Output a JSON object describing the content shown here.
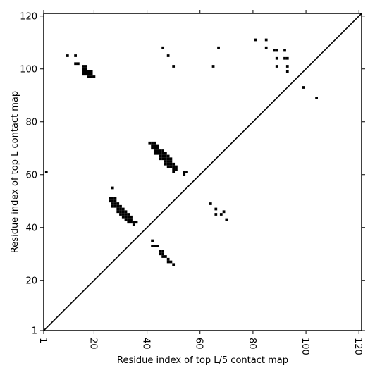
{
  "chart_data": {
    "type": "heatmap",
    "title": "",
    "xlabel": "Residue index of top L/5 contact map",
    "ylabel": "Residue index of top L contact map",
    "xlim": [
      1,
      121
    ],
    "ylim": [
      1,
      121
    ],
    "x_ticks": [
      1,
      20,
      40,
      60,
      80,
      100,
      120
    ],
    "y_ticks": [
      1,
      20,
      40,
      60,
      80,
      100,
      120
    ],
    "x_tick_rotation": -90,
    "grid": false,
    "diagonal_line": true,
    "mark_color": "#000000",
    "background_color": "#ffffff",
    "points": [
      [
        2,
        61
      ],
      [
        10,
        105
      ],
      [
        13,
        105
      ],
      [
        13,
        102
      ],
      [
        14,
        102
      ],
      [
        16,
        101
      ],
      [
        17,
        101
      ],
      [
        16,
        100
      ],
      [
        17,
        100
      ],
      [
        16,
        99
      ],
      [
        17,
        99
      ],
      [
        18,
        99
      ],
      [
        19,
        99
      ],
      [
        16,
        98
      ],
      [
        17,
        98
      ],
      [
        18,
        98
      ],
      [
        19,
        98
      ],
      [
        18,
        97
      ],
      [
        19,
        97
      ],
      [
        20,
        97
      ],
      [
        26,
        51
      ],
      [
        27,
        51
      ],
      [
        28,
        51
      ],
      [
        27,
        55
      ],
      [
        27,
        50
      ],
      [
        28,
        50
      ],
      [
        28,
        49
      ],
      [
        29,
        49
      ],
      [
        26,
        50
      ],
      [
        27,
        49
      ],
      [
        27,
        48
      ],
      [
        28,
        48
      ],
      [
        29,
        48
      ],
      [
        30,
        48
      ],
      [
        29,
        47
      ],
      [
        30,
        47
      ],
      [
        31,
        47
      ],
      [
        29,
        46
      ],
      [
        30,
        46
      ],
      [
        31,
        46
      ],
      [
        32,
        46
      ],
      [
        30,
        45
      ],
      [
        31,
        45
      ],
      [
        32,
        45
      ],
      [
        33,
        45
      ],
      [
        31,
        44
      ],
      [
        32,
        44
      ],
      [
        33,
        44
      ],
      [
        34,
        44
      ],
      [
        32,
        43
      ],
      [
        33,
        43
      ],
      [
        34,
        43
      ],
      [
        33,
        42
      ],
      [
        34,
        42
      ],
      [
        35,
        42
      ],
      [
        36,
        42
      ],
      [
        35,
        41
      ],
      [
        41,
        72
      ],
      [
        42,
        72
      ],
      [
        43,
        72
      ],
      [
        42,
        71
      ],
      [
        43,
        71
      ],
      [
        44,
        71
      ],
      [
        42,
        70
      ],
      [
        43,
        70
      ],
      [
        44,
        70
      ],
      [
        43,
        69
      ],
      [
        44,
        69
      ],
      [
        45,
        69
      ],
      [
        46,
        69
      ],
      [
        43,
        68
      ],
      [
        44,
        68
      ],
      [
        45,
        68
      ],
      [
        46,
        68
      ],
      [
        47,
        68
      ],
      [
        45,
        67
      ],
      [
        46,
        67
      ],
      [
        47,
        67
      ],
      [
        48,
        67
      ],
      [
        45,
        66
      ],
      [
        46,
        66
      ],
      [
        47,
        66
      ],
      [
        48,
        66
      ],
      [
        49,
        66
      ],
      [
        47,
        65
      ],
      [
        48,
        65
      ],
      [
        49,
        65
      ],
      [
        47,
        64
      ],
      [
        48,
        64
      ],
      [
        49,
        64
      ],
      [
        50,
        64
      ],
      [
        48,
        63
      ],
      [
        49,
        63
      ],
      [
        50,
        63
      ],
      [
        51,
        63
      ],
      [
        50,
        62
      ],
      [
        51,
        62
      ],
      [
        50,
        61
      ],
      [
        54,
        61
      ],
      [
        55,
        61
      ],
      [
        54,
        60
      ],
      [
        46,
        108
      ],
      [
        48,
        105
      ],
      [
        50,
        101
      ],
      [
        65,
        101
      ],
      [
        67,
        108
      ],
      [
        81,
        111
      ],
      [
        85,
        111
      ],
      [
        85,
        108
      ],
      [
        88,
        107
      ],
      [
        89,
        107
      ],
      [
        92,
        107
      ],
      [
        89,
        104
      ],
      [
        92,
        104
      ],
      [
        93,
        104
      ],
      [
        89,
        101
      ],
      [
        93,
        101
      ],
      [
        93,
        99
      ],
      [
        99,
        93
      ],
      [
        104,
        89
      ],
      [
        64,
        49
      ],
      [
        66,
        47
      ],
      [
        69,
        46
      ],
      [
        66,
        45
      ],
      [
        68,
        45
      ],
      [
        70,
        43
      ],
      [
        42,
        35
      ],
      [
        42,
        33
      ],
      [
        43,
        33
      ],
      [
        44,
        33
      ],
      [
        45,
        31
      ],
      [
        46,
        31
      ],
      [
        45,
        30
      ],
      [
        46,
        30
      ],
      [
        46,
        29
      ],
      [
        47,
        29
      ],
      [
        48,
        28
      ],
      [
        48,
        27
      ],
      [
        49,
        27
      ],
      [
        50,
        26
      ]
    ]
  }
}
